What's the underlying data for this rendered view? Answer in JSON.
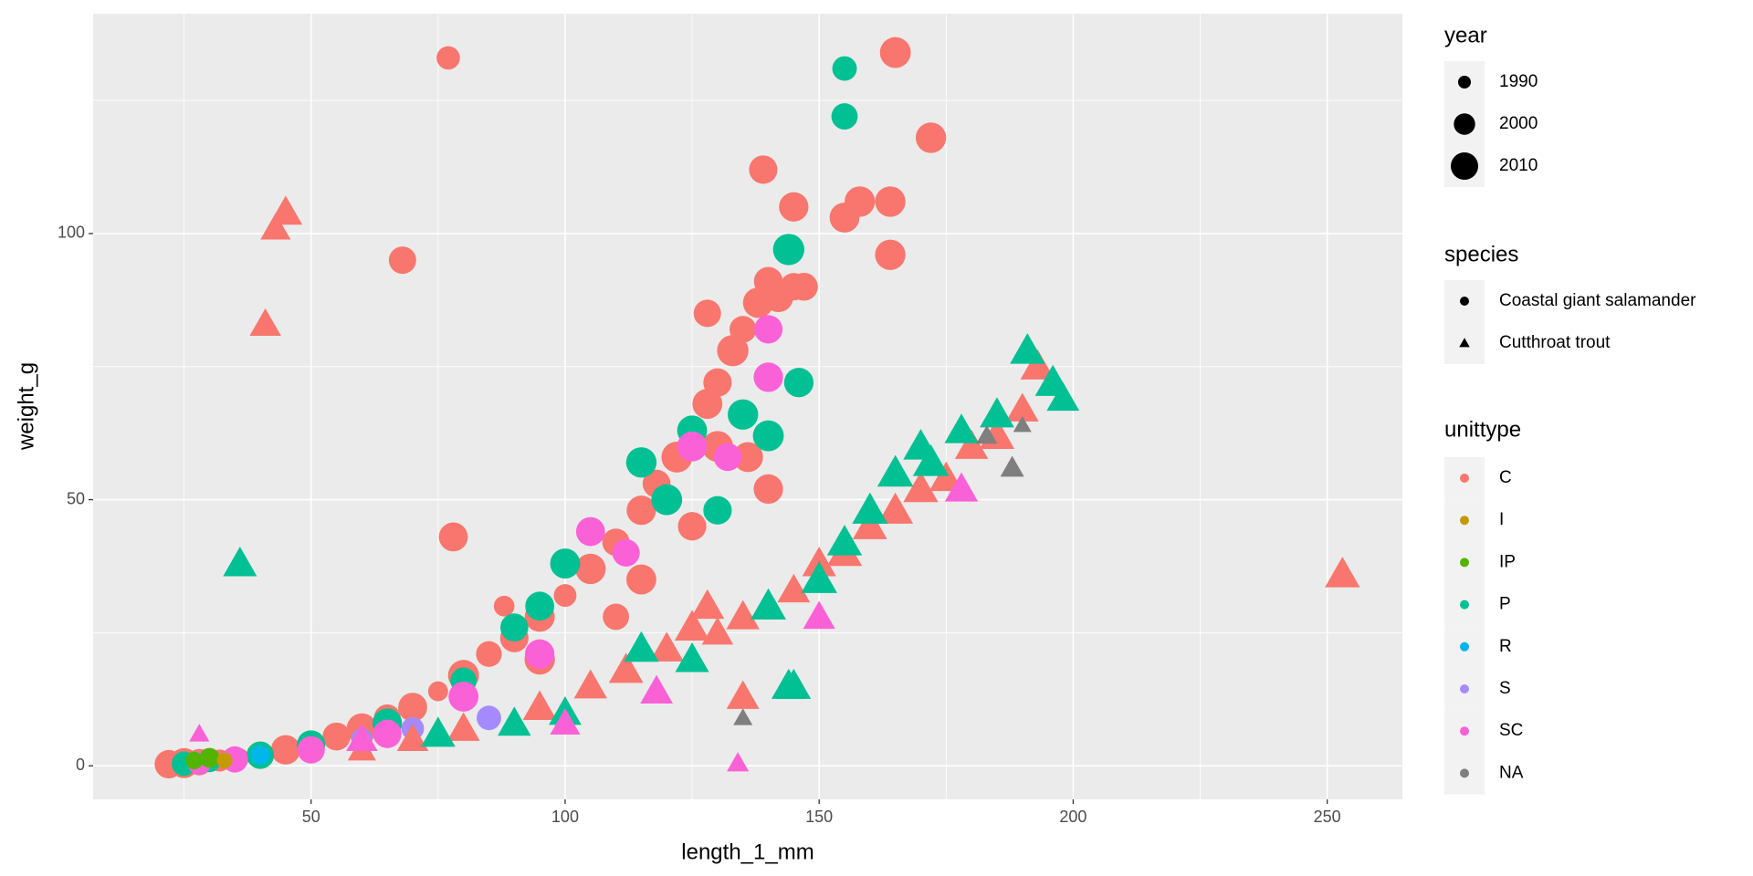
{
  "chart_data": {
    "type": "scatter",
    "x_label": "length_1_mm",
    "y_label": "weight_g",
    "xlim": [
      7.1,
      264.8
    ],
    "ylim": [
      -6.3,
      141.3
    ],
    "xticks": [
      50,
      100,
      150,
      200,
      250
    ],
    "yticks": [
      0,
      50,
      100
    ],
    "x_minor_ticks": [
      25,
      75,
      125,
      175,
      225
    ],
    "y_minor_ticks": [
      25,
      75,
      125
    ],
    "grid": true,
    "legend_position": "right",
    "size_legend": {
      "title": "year",
      "breaks": [
        1990,
        2000,
        2010
      ]
    },
    "shape_legend": {
      "title": "species",
      "labels": [
        "Coastal giant salamander",
        "Cutthroat trout"
      ],
      "shapes": [
        "circle",
        "triangle"
      ]
    },
    "color_legend": {
      "title": "unittype",
      "labels": [
        "C",
        "I",
        "IP",
        "P",
        "R",
        "S",
        "SC",
        "NA"
      ],
      "colors": [
        "#F8766D",
        "#C49A00",
        "#53B400",
        "#00C094",
        "#00B6EB",
        "#A58AFF",
        "#FB61D7",
        "#7F7F7F"
      ]
    },
    "series": [
      {
        "color": "#F8766D",
        "shape": "circle",
        "x": [
          22,
          25,
          28,
          32,
          36,
          40,
          45,
          50,
          55,
          60,
          65,
          70,
          75,
          80,
          85,
          90,
          95,
          100,
          105,
          110,
          115,
          118,
          122,
          125,
          128,
          130,
          133,
          135,
          138,
          140,
          142,
          145,
          130,
          125,
          115,
          110,
          95,
          88,
          77,
          68,
          165,
          172,
          139,
          145,
          155,
          158,
          164,
          164,
          78,
          140,
          147,
          136,
          128
        ],
        "y": [
          0.3,
          0.5,
          0.7,
          1,
          1.5,
          2,
          3,
          4,
          5.5,
          7,
          9,
          11,
          14,
          17,
          21,
          24,
          28,
          32,
          37,
          42,
          48,
          53,
          58,
          63,
          68,
          72,
          78,
          82,
          87,
          91,
          88,
          90,
          60,
          45,
          35,
          28,
          20,
          30,
          133,
          95,
          134,
          118,
          112,
          105,
          103,
          106,
          106,
          96,
          43,
          52,
          90,
          58,
          85
        ],
        "year": [
          2012,
          2015,
          2008,
          2001,
          1996,
          2010,
          2014,
          2003,
          2011,
          2016,
          2009,
          2013,
          1998,
          2017,
          2007,
          2012,
          2015,
          2002,
          2016,
          2010,
          2014,
          2011,
          2017,
          2006,
          2015,
          2012,
          2018,
          2009,
          2016,
          2013,
          2014,
          2010,
          2017,
          2012,
          2015,
          2008,
          2016,
          1999,
          2003,
          2010,
          2017,
          2016,
          2012,
          2014,
          2015,
          2016,
          2016,
          2016,
          2013,
          2014,
          2011,
          2015,
          2010
        ]
      },
      {
        "color": "#00C094",
        "shape": "circle",
        "x": [
          25,
          30,
          40,
          50,
          65,
          80,
          90,
          95,
          100,
          115,
          120,
          125,
          130,
          135,
          140,
          144,
          146,
          155,
          155
        ],
        "y": [
          0.4,
          0.8,
          2,
          4,
          8,
          16,
          26,
          30,
          38,
          57,
          50,
          63,
          48,
          66,
          62,
          97,
          72,
          131,
          122
        ],
        "year": [
          2005,
          2000,
          2010,
          2012,
          2014,
          2008,
          2011,
          2013,
          2015,
          2016,
          2017,
          2015,
          2012,
          2016,
          2017,
          2018,
          2014,
          2005,
          2008
        ]
      },
      {
        "color": "#FB61D7",
        "shape": "circle",
        "x": [
          28,
          35,
          50,
          65,
          80,
          95,
          105,
          112,
          125,
          140,
          140,
          132
        ],
        "y": [
          0.5,
          1.2,
          3,
          6,
          13,
          21,
          44,
          40,
          60,
          82,
          73,
          58
        ],
        "year": [
          2003,
          2008,
          2010,
          2012,
          2015,
          2014,
          2013,
          2010,
          2015,
          2012,
          2014,
          2011
        ]
      },
      {
        "color": "#53B400",
        "shape": "circle",
        "x": [
          27,
          30
        ],
        "y": [
          1,
          1.5
        ],
        "year": [
          1995,
          1998
        ]
      },
      {
        "color": "#A58AFF",
        "shape": "circle",
        "x": [
          60,
          70,
          85
        ],
        "y": [
          5,
          7,
          9
        ],
        "year": [
          2000,
          2002,
          2005
        ]
      },
      {
        "color": "#00B6EB",
        "shape": "circle",
        "x": [
          40
        ],
        "y": [
          2
        ],
        "year": [
          1997
        ]
      },
      {
        "color": "#C49A00",
        "shape": "circle",
        "x": [
          33
        ],
        "y": [
          1
        ],
        "year": [
          1993
        ]
      },
      {
        "color": "#F8766D",
        "shape": "triangle",
        "x": [
          41,
          43,
          45,
          60,
          70,
          80,
          95,
          105,
          112,
          120,
          125,
          130,
          135,
          140,
          145,
          150,
          155,
          160,
          165,
          170,
          175,
          180,
          185,
          190,
          193,
          253,
          135,
          128
        ],
        "y": [
          83,
          101,
          104,
          3,
          5,
          7,
          11,
          15,
          18,
          22,
          26,
          25,
          28,
          30,
          33,
          38,
          40,
          45,
          48,
          52,
          54,
          60,
          62,
          67,
          75,
          36,
          13,
          30
        ],
        "year": [
          2010,
          2008,
          2013,
          2005,
          2010,
          2012,
          2014,
          2013,
          2015,
          2014,
          2016,
          2010,
          2013,
          2015,
          2012,
          2014,
          2016,
          2015,
          2017,
          2016,
          2014,
          2013,
          2016,
          2012,
          2015,
          2016,
          2012,
          2014
        ]
      },
      {
        "color": "#00C094",
        "shape": "triangle",
        "x": [
          36,
          75,
          90,
          100,
          115,
          125,
          140,
          145,
          150,
          155,
          160,
          165,
          170,
          172,
          178,
          185,
          191,
          196,
          198,
          144
        ],
        "y": [
          38,
          6,
          8,
          10,
          22,
          20,
          30,
          15,
          35,
          42,
          48,
          55,
          60,
          57,
          63,
          66,
          78,
          72,
          69,
          15
        ],
        "year": [
          2014,
          2015,
          2013,
          2012,
          2016,
          2014,
          2017,
          2015,
          2018,
          2016,
          2017,
          2018,
          2016,
          2018,
          2014,
          2015,
          2016,
          2017,
          2012,
          2015
        ]
      },
      {
        "color": "#FB61D7",
        "shape": "triangle",
        "x": [
          28,
          60,
          100,
          118,
          134,
          150,
          178
        ],
        "y": [
          6,
          5,
          8,
          14,
          0.5,
          28,
          52
        ],
        "year": [
          1995,
          2010,
          2008,
          2012,
          1997,
          2011,
          2013
        ]
      },
      {
        "color": "#7F7F7F",
        "shape": "triangle",
        "x": [
          135,
          183,
          188,
          190
        ],
        "y": [
          9,
          62,
          56,
          64
        ],
        "year": [
          1994,
          1996,
          1999,
          1993
        ]
      }
    ]
  }
}
